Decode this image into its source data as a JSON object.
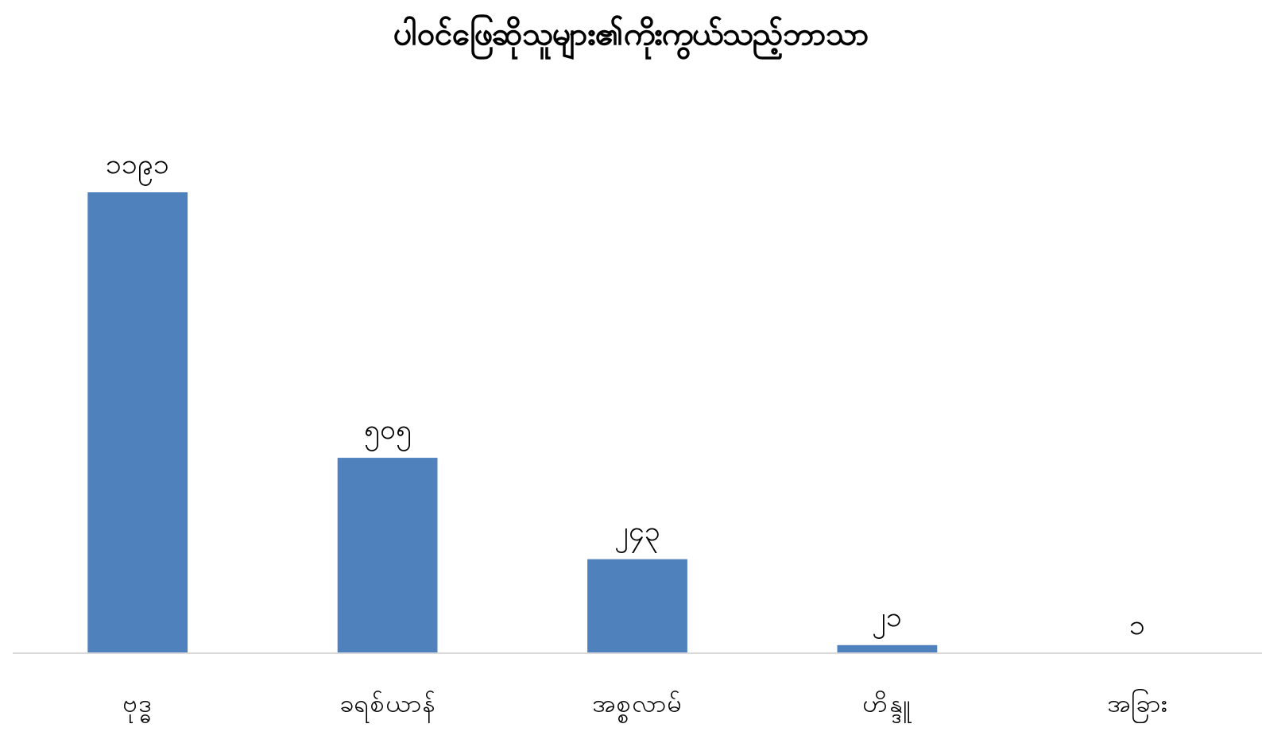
{
  "chart_data": {
    "type": "bar",
    "title": "ပါဝင်ဖြေဆိုသူများ၏ကိုးကွယ်သည့်ဘာသာ",
    "categories": [
      "ဗုဒ္ဓ",
      "ခရစ်ယာန်",
      "အစ္စလာမ်",
      "ဟိန္ဒူ",
      "အခြား"
    ],
    "values": [
      1191,
      505,
      243,
      21,
      1
    ],
    "value_labels": [
      "၁၁၉၁",
      "၅၀၅",
      "၂၄၃",
      "၂၁",
      "၁"
    ],
    "color": "#4f81bd"
  }
}
